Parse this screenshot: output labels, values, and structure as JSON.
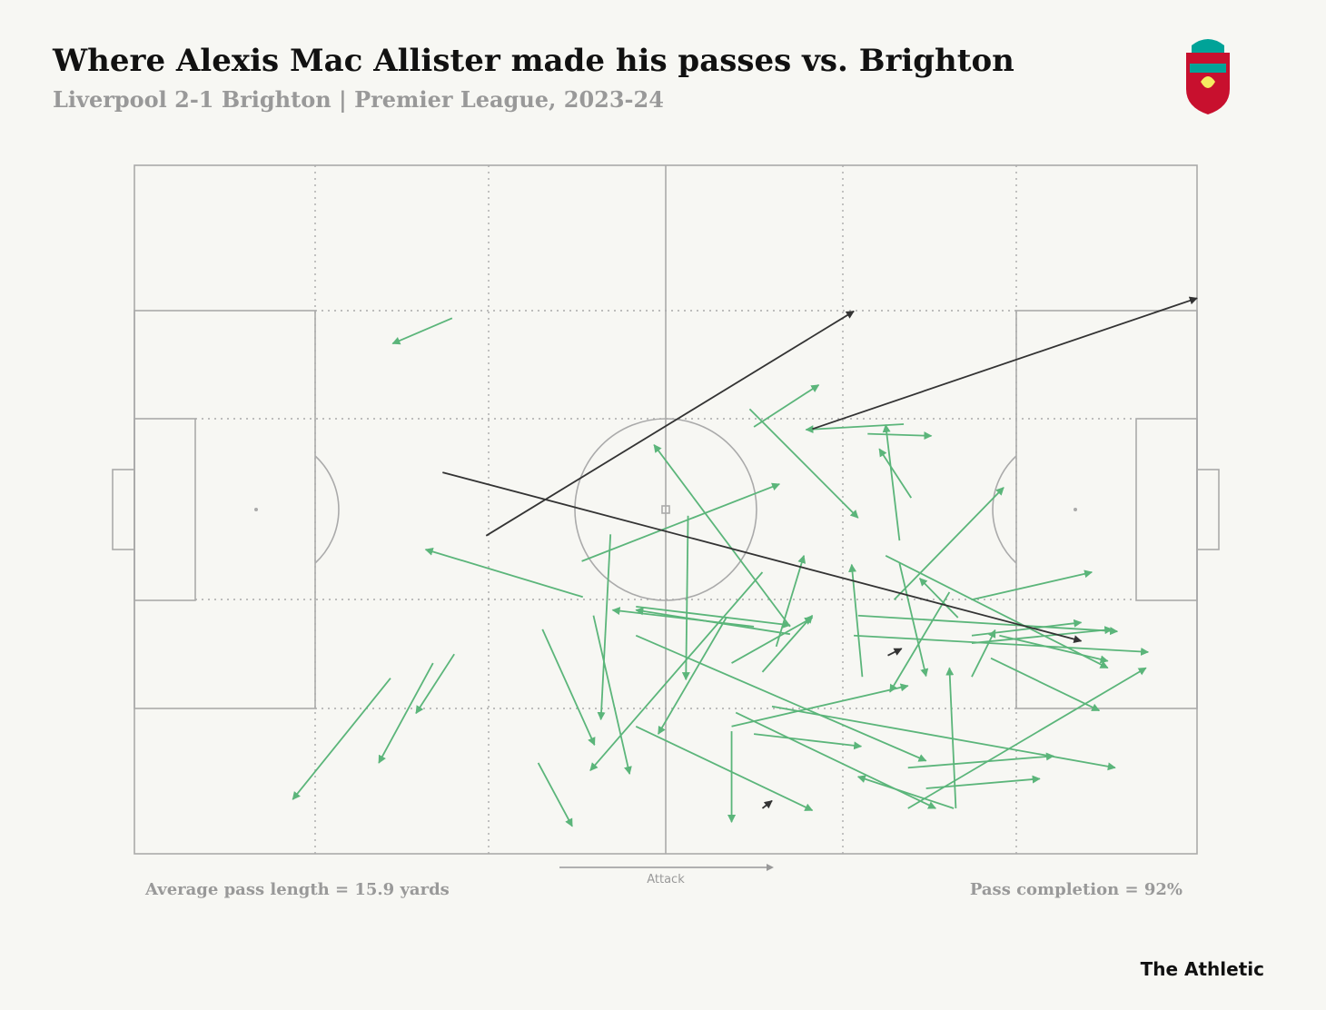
{
  "chart_data": {
    "type": "pass-map",
    "title": "Where Alexis Mac Allister made his passes vs. Brighton",
    "subtitle": "Liverpool 2-1 Brighton | Premier League, 2023-24",
    "annotations": [
      "Average pass length = 15.9 yards",
      "Attack",
      "Pass completion = 92%"
    ],
    "source": "The Athletic",
    "xlim": [
      0,
      100
    ],
    "ylim": [
      0,
      100
    ],
    "series": [
      {
        "color": "#5bb57a",
        "x_start": [
          29.9,
          24.1,
          28.1,
          30.1,
          38.0,
          38.4,
          42.2,
          42.1,
          44.8,
          43.2,
          59.1,
          52.1,
          61.7,
          57.9,
          58.3,
          72.4,
          69.0,
          72.0,
          73.1,
          71.5,
          70.7,
          72.0,
          78.8,
          76.7,
          77.5,
          68.5,
          68.1,
          67.7,
          60.4,
          59.1,
          56.2,
          47.2,
          61.7,
          55.7,
          58.3,
          47.2,
          47.2,
          56.2,
          56.6,
          56.2,
          58.3,
          60.0,
          72.8,
          74.5,
          77.1,
          77.3,
          72.8,
          78.8,
          78.8,
          80.6,
          81.4,
          78.8
        ],
        "y_start": [
          22.2,
          74.5,
          72.3,
          71.0,
          86.8,
          67.4,
          62.7,
          57.5,
          53.6,
          65.4,
          59.1,
          50.9,
          67.0,
          35.4,
          38.0,
          37.6,
          39.0,
          54.5,
          48.3,
          63.1,
          56.7,
          57.8,
          63.1,
          62.0,
          65.7,
          74.3,
          65.4,
          68.3,
          69.9,
          73.6,
          72.3,
          64.1,
          68.1,
          65.7,
          67.0,
          68.3,
          81.5,
          82.2,
          79.5,
          81.5,
          82.6,
          78.6,
          87.5,
          90.5,
          93.4,
          93.4,
          93.4,
          68.3,
          74.3,
          71.6,
          68.3,
          69.4
        ],
        "x_end": [
          24.3,
          14.9,
          23.0,
          26.5,
          41.2,
          43.3,
          27.4,
          60.7,
          43.9,
          46.6,
          42.9,
          51.9,
          48.9,
          68.1,
          64.4,
          63.2,
          75.0,
          70.7,
          70.1,
          81.8,
          91.6,
          74.5,
          90.1,
          71.1,
          73.9,
          67.5,
          92.5,
          95.4,
          63.0,
          63.8,
          63.8,
          61.7,
          47.2,
          49.3,
          45.0,
          74.5,
          63.8,
          56.2,
          75.4,
          72.8,
          68.4,
          92.3,
          86.5,
          85.2,
          68.1,
          76.7,
          95.2,
          89.1,
          81.0,
          90.8,
          91.6,
          92.0
        ],
        "y_end": [
          25.9,
          92.1,
          86.8,
          79.6,
          96.0,
          84.2,
          55.8,
          46.3,
          80.5,
          88.4,
          87.9,
          74.7,
          40.6,
          51.2,
          31.9,
          38.4,
          39.3,
          37.7,
          41.2,
          46.8,
          73.0,
          74.2,
          59.1,
          76.5,
          60.0,
          58.0,
          67.7,
          70.7,
          56.7,
          65.4,
          65.7,
          66.8,
          64.6,
          82.6,
          64.6,
          86.5,
          93.7,
          95.4,
          93.4,
          75.6,
          84.4,
          87.5,
          85.8,
          89.1,
          88.8,
          73.0,
          73.0,
          66.4,
          67.5,
          79.2,
          72.0,
          67.4
        ]
      },
      {
        "color": "#333333",
        "x_start": [
          33.1,
          63.8,
          29.0,
          70.9,
          59.1
        ],
        "y_start": [
          53.8,
          38.3,
          44.6,
          71.2,
          93.4
        ],
        "x_end": [
          67.7,
          100,
          89.1,
          72.2,
          60.0
        ],
        "y_end": [
          21.2,
          19.3,
          69.1,
          70.2,
          92.3
        ]
      }
    ]
  }
}
